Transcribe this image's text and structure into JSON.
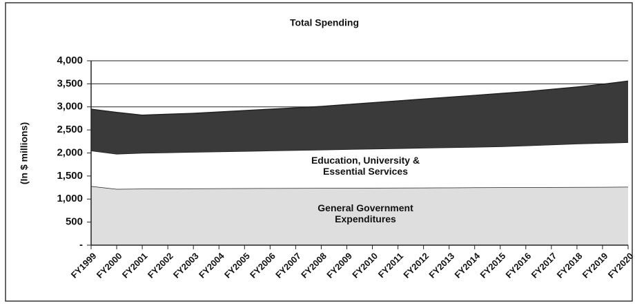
{
  "chart_data": {
    "type": "stacked_area",
    "title": "Total Spending",
    "y_label": "(In $ millions)",
    "categories": [
      "FY1999",
      "FY2000",
      "FY2001",
      "FY2002",
      "FY2003",
      "FY2004",
      "FY2005",
      "FY2006",
      "FY2007",
      "FY2008",
      "FY2009",
      "FY2010",
      "FY2011",
      "FY2012",
      "FY2013",
      "FY2014",
      "FY2015",
      "FY2016",
      "FY2017",
      "FY2018",
      "FY2019",
      "FY2020"
    ],
    "series": [
      {
        "name": "General Government Expenditures",
        "color": "#dedede",
        "values": [
          1280,
          1220,
          1225,
          1228,
          1230,
          1232,
          1234,
          1236,
          1238,
          1240,
          1242,
          1244,
          1246,
          1248,
          1250,
          1252,
          1254,
          1256,
          1258,
          1260,
          1262,
          1265
        ]
      },
      {
        "name": "Education, University & Essential Services",
        "color": "#ffffff",
        "values": [
          770,
          760,
          775,
          782,
          790,
          798,
          806,
          814,
          822,
          830,
          838,
          846,
          854,
          862,
          870,
          878,
          886,
          904,
          922,
          940,
          953,
          965
        ]
      },
      {
        "color": "#3a3a3a",
        "values": [
          900,
          900,
          820,
          830,
          840,
          860,
          880,
          900,
          920,
          940,
          970,
          1000,
          1030,
          1060,
          1090,
          1120,
          1150,
          1170,
          1200,
          1230,
          1275,
          1330
        ]
      }
    ],
    "ylim": [
      0,
      4000
    ],
    "yticks": [
      {
        "value": 0,
        "label": "-"
      },
      500,
      {
        "value": 1000,
        "label": "1,000"
      },
      {
        "value": 1500,
        "label": "1,500"
      },
      {
        "value": 2000,
        "label": "2,000"
      },
      {
        "value": 2500,
        "label": "2,500"
      },
      {
        "value": 3000,
        "label": "3,000"
      },
      {
        "value": 3500,
        "label": "3,500"
      },
      {
        "value": 4000,
        "label": "4,000"
      }
    ],
    "grid": true
  }
}
